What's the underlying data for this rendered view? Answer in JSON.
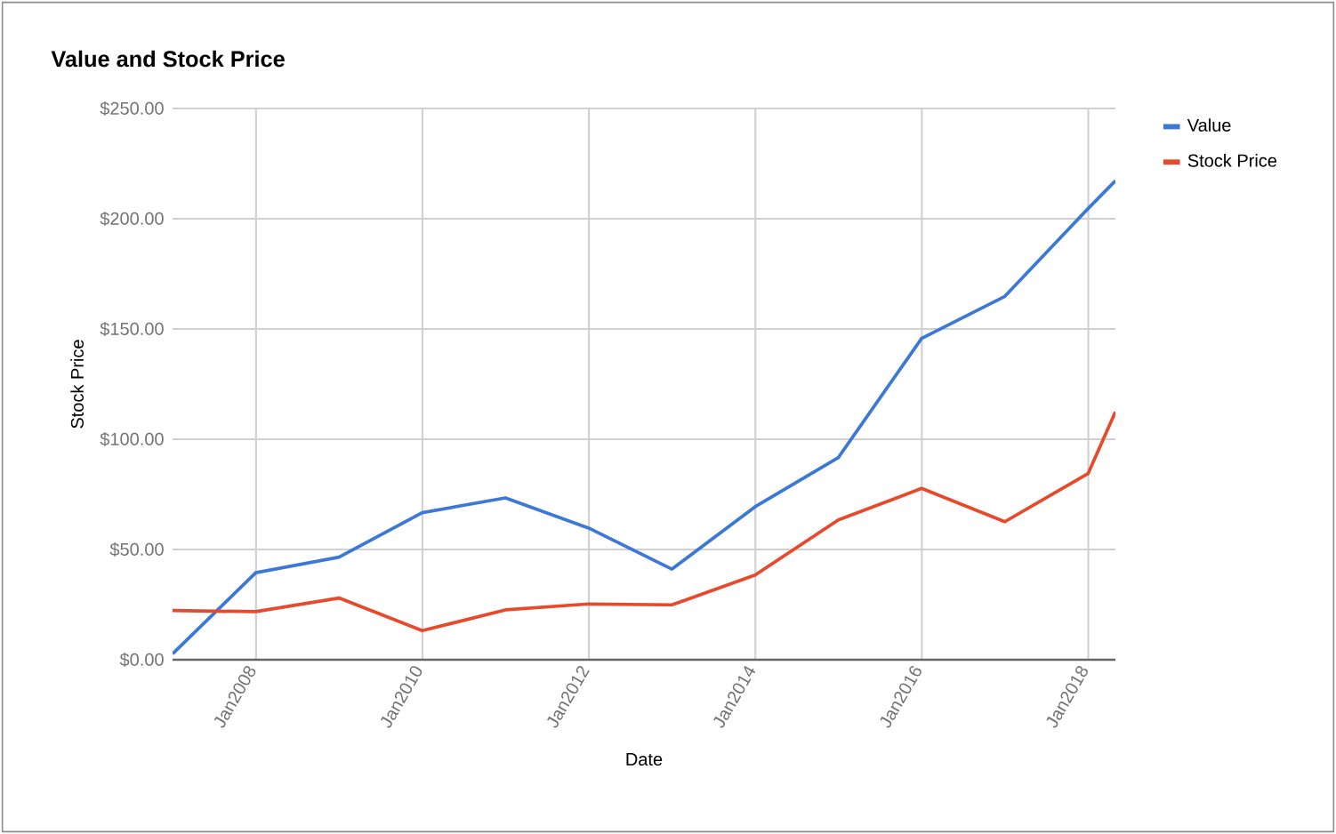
{
  "chart_data": {
    "type": "line",
    "title": "Value and Stock Price",
    "xlabel": "Date",
    "ylabel": "Stock Price",
    "x": [
      "2006-12-31",
      "2007-12-31",
      "2008-12-31",
      "2009-12-31",
      "2010-12-31",
      "2011-12-31",
      "2012-12-31",
      "2013-12-31",
      "2014-12-31",
      "2015-12-31",
      "2016-12-31",
      "2017-12-31",
      "2018-04-30"
    ],
    "series": [
      {
        "name": "Value",
        "color": "#3c78d8",
        "values": [
          2.7,
          39.5,
          46.5,
          66.7,
          73.4,
          59.7,
          41.1,
          69.4,
          91.7,
          145.7,
          164.8,
          204.6,
          217.2
        ]
      },
      {
        "name": "Stock Price",
        "color": "#e8492b",
        "values": [
          22.3,
          21.8,
          28,
          13.2,
          22.6,
          25.3,
          24.9,
          38.4,
          63.4,
          77.7,
          62.6,
          84.4,
          112.4
        ]
      }
    ],
    "xlim": [
      "2006-12-31",
      "2018-04-30"
    ],
    "xticks": [
      {
        "value": "2008-01-01",
        "label": "Jan2008"
      },
      {
        "value": "2010-01-01",
        "label": "Jan2010"
      },
      {
        "value": "2012-01-01",
        "label": "Jan2012"
      },
      {
        "value": "2014-01-01",
        "label": "Jan2014"
      },
      {
        "value": "2016-01-01",
        "label": "Jan2016"
      },
      {
        "value": "2018-01-01",
        "label": "Jan2018"
      }
    ],
    "ylim": [
      0,
      250
    ],
    "yticks": [
      {
        "value": 0,
        "label": "$0.00"
      },
      {
        "value": 50,
        "label": "$50.00"
      },
      {
        "value": 100,
        "label": "$100.00"
      },
      {
        "value": 150,
        "label": "$150.00"
      },
      {
        "value": 200,
        "label": "$200.00"
      },
      {
        "value": 250,
        "label": "$250.00"
      }
    ],
    "grid": true,
    "legend": "top right",
    "marker": "none",
    "line_style": "solid"
  }
}
